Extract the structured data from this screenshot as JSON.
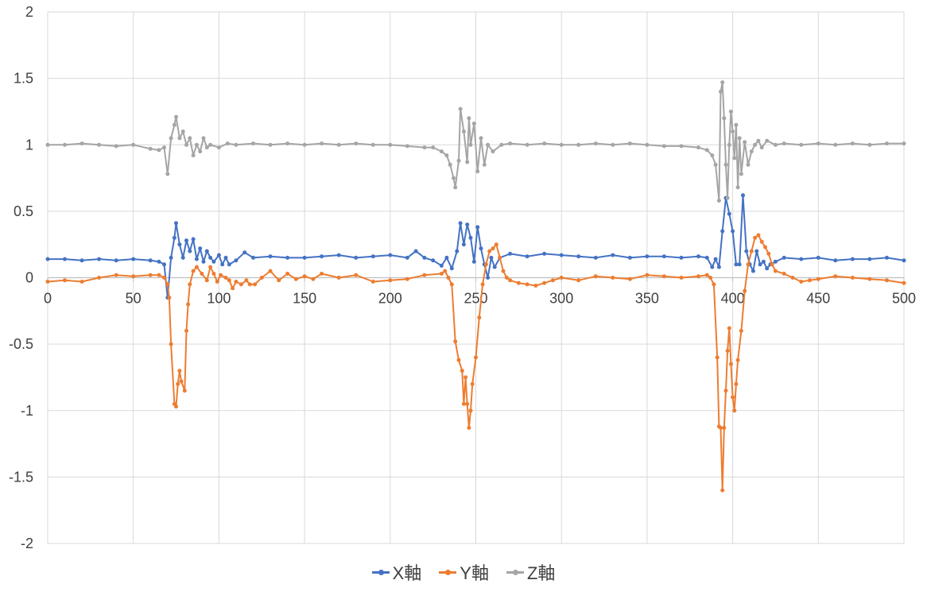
{
  "chart_data": {
    "type": "line",
    "title": "",
    "xlabel": "",
    "ylabel": "",
    "xlim": [
      0,
      500
    ],
    "ylim": [
      -2,
      2
    ],
    "x_ticks": [
      "0",
      "50",
      "100",
      "150",
      "200",
      "250",
      "300",
      "350",
      "400",
      "450",
      "500"
    ],
    "y_ticks": [
      "2",
      "1.5",
      "1",
      "0.5",
      "0",
      "-0.5",
      "-1",
      "-1.5",
      "-2"
    ],
    "grid": true,
    "legend_position": "bottom",
    "series": [
      {
        "name": "X軸",
        "color": "#4472C4",
        "points": [
          [
            0,
            0.14
          ],
          [
            10,
            0.14
          ],
          [
            20,
            0.13
          ],
          [
            30,
            0.14
          ],
          [
            40,
            0.13
          ],
          [
            50,
            0.14
          ],
          [
            60,
            0.13
          ],
          [
            65,
            0.12
          ],
          [
            68,
            0.1
          ],
          [
            70,
            -0.15
          ],
          [
            72,
            0.15
          ],
          [
            74,
            0.3
          ],
          [
            75,
            0.41
          ],
          [
            77,
            0.25
          ],
          [
            79,
            0.15
          ],
          [
            81,
            0.28
          ],
          [
            83,
            0.2
          ],
          [
            85,
            0.29
          ],
          [
            87,
            0.14
          ],
          [
            89,
            0.22
          ],
          [
            91,
            0.12
          ],
          [
            93,
            0.2
          ],
          [
            95,
            0.15
          ],
          [
            97,
            0.12
          ],
          [
            100,
            0.17
          ],
          [
            102,
            0.1
          ],
          [
            104,
            0.15
          ],
          [
            106,
            0.1
          ],
          [
            110,
            0.13
          ],
          [
            115,
            0.19
          ],
          [
            120,
            0.15
          ],
          [
            130,
            0.16
          ],
          [
            140,
            0.15
          ],
          [
            150,
            0.15
          ],
          [
            160,
            0.16
          ],
          [
            170,
            0.17
          ],
          [
            180,
            0.15
          ],
          [
            190,
            0.16
          ],
          [
            200,
            0.17
          ],
          [
            210,
            0.15
          ],
          [
            215,
            0.2
          ],
          [
            220,
            0.15
          ],
          [
            225,
            0.13
          ],
          [
            230,
            0.09
          ],
          [
            233,
            0.15
          ],
          [
            236,
            0.07
          ],
          [
            239,
            0.2
          ],
          [
            241,
            0.41
          ],
          [
            243,
            0.25
          ],
          [
            245,
            0.4
          ],
          [
            247,
            0.3
          ],
          [
            249,
            0.12
          ],
          [
            251,
            0.38
          ],
          [
            253,
            0.22
          ],
          [
            255,
            0.1
          ],
          [
            257,
            0.0
          ],
          [
            259,
            0.15
          ],
          [
            261,
            0.08
          ],
          [
            264,
            0.15
          ],
          [
            270,
            0.18
          ],
          [
            280,
            0.16
          ],
          [
            290,
            0.18
          ],
          [
            300,
            0.17
          ],
          [
            310,
            0.16
          ],
          [
            320,
            0.15
          ],
          [
            330,
            0.17
          ],
          [
            340,
            0.15
          ],
          [
            350,
            0.16
          ],
          [
            360,
            0.16
          ],
          [
            370,
            0.15
          ],
          [
            380,
            0.16
          ],
          [
            385,
            0.15
          ],
          [
            388,
            0.08
          ],
          [
            390,
            0.14
          ],
          [
            392,
            0.08
          ],
          [
            394,
            0.35
          ],
          [
            396,
            0.6
          ],
          [
            398,
            0.48
          ],
          [
            400,
            0.35
          ],
          [
            402,
            0.1
          ],
          [
            404,
            0.1
          ],
          [
            406,
            0.62
          ],
          [
            408,
            0.2
          ],
          [
            410,
            0.1
          ],
          [
            412,
            0.05
          ],
          [
            414,
            0.2
          ],
          [
            416,
            0.1
          ],
          [
            418,
            0.12
          ],
          [
            420,
            0.07
          ],
          [
            422,
            0.1
          ],
          [
            425,
            0.12
          ],
          [
            430,
            0.15
          ],
          [
            440,
            0.14
          ],
          [
            450,
            0.15
          ],
          [
            460,
            0.13
          ],
          [
            470,
            0.14
          ],
          [
            480,
            0.14
          ],
          [
            490,
            0.15
          ],
          [
            500,
            0.13
          ]
        ]
      },
      {
        "name": "Y軸",
        "color": "#ED7D31",
        "points": [
          [
            0,
            -0.03
          ],
          [
            10,
            -0.02
          ],
          [
            20,
            -0.03
          ],
          [
            30,
            0.0
          ],
          [
            40,
            0.02
          ],
          [
            50,
            0.01
          ],
          [
            60,
            0.02
          ],
          [
            65,
            0.02
          ],
          [
            68,
            0.0
          ],
          [
            70,
            -0.05
          ],
          [
            71,
            -0.15
          ],
          [
            72,
            -0.5
          ],
          [
            74,
            -0.95
          ],
          [
            75,
            -0.97
          ],
          [
            76,
            -0.8
          ],
          [
            77,
            -0.7
          ],
          [
            78,
            -0.78
          ],
          [
            80,
            -0.85
          ],
          [
            81,
            -0.4
          ],
          [
            82,
            -0.2
          ],
          [
            83,
            -0.05
          ],
          [
            85,
            0.05
          ],
          [
            87,
            0.08
          ],
          [
            90,
            0.03
          ],
          [
            93,
            -0.02
          ],
          [
            95,
            0.08
          ],
          [
            97,
            0.03
          ],
          [
            99,
            -0.03
          ],
          [
            101,
            0.02
          ],
          [
            104,
            0.0
          ],
          [
            106,
            -0.02
          ],
          [
            108,
            -0.08
          ],
          [
            110,
            -0.03
          ],
          [
            113,
            -0.05
          ],
          [
            116,
            -0.02
          ],
          [
            118,
            -0.05
          ],
          [
            121,
            -0.05
          ],
          [
            125,
            0.0
          ],
          [
            130,
            0.05
          ],
          [
            135,
            -0.02
          ],
          [
            140,
            0.03
          ],
          [
            145,
            -0.01
          ],
          [
            150,
            0.01
          ],
          [
            155,
            -0.01
          ],
          [
            160,
            0.03
          ],
          [
            170,
            0.0
          ],
          [
            180,
            0.02
          ],
          [
            190,
            -0.03
          ],
          [
            200,
            -0.02
          ],
          [
            210,
            -0.01
          ],
          [
            220,
            0.02
          ],
          [
            230,
            0.03
          ],
          [
            232,
            0.05
          ],
          [
            234,
            0.0
          ],
          [
            236,
            -0.05
          ],
          [
            238,
            -0.48
          ],
          [
            240,
            -0.62
          ],
          [
            242,
            -0.7
          ],
          [
            243,
            -0.95
          ],
          [
            244,
            -0.75
          ],
          [
            245,
            -0.95
          ],
          [
            246,
            -1.13
          ],
          [
            247,
            -1.0
          ],
          [
            248,
            -0.8
          ],
          [
            250,
            -0.6
          ],
          [
            252,
            -0.3
          ],
          [
            254,
            -0.05
          ],
          [
            256,
            0.1
          ],
          [
            258,
            0.2
          ],
          [
            260,
            0.22
          ],
          [
            262,
            0.25
          ],
          [
            264,
            0.15
          ],
          [
            266,
            0.05
          ],
          [
            268,
            0.0
          ],
          [
            270,
            -0.02
          ],
          [
            275,
            -0.04
          ],
          [
            280,
            -0.05
          ],
          [
            285,
            -0.06
          ],
          [
            290,
            -0.04
          ],
          [
            295,
            -0.02
          ],
          [
            300,
            0.0
          ],
          [
            310,
            -0.02
          ],
          [
            320,
            0.01
          ],
          [
            330,
            0.0
          ],
          [
            340,
            -0.01
          ],
          [
            350,
            0.02
          ],
          [
            360,
            0.01
          ],
          [
            370,
            0.0
          ],
          [
            380,
            0.01
          ],
          [
            385,
            0.02
          ],
          [
            387,
            0.0
          ],
          [
            389,
            -0.05
          ],
          [
            391,
            -0.6
          ],
          [
            392,
            -1.12
          ],
          [
            393,
            -1.13
          ],
          [
            394,
            -1.6
          ],
          [
            395,
            -1.13
          ],
          [
            396,
            -0.85
          ],
          [
            397,
            -0.55
          ],
          [
            398,
            -0.38
          ],
          [
            399,
            -0.65
          ],
          [
            400,
            -0.9
          ],
          [
            401,
            -1.0
          ],
          [
            402,
            -0.8
          ],
          [
            403,
            -0.62
          ],
          [
            405,
            -0.4
          ],
          [
            407,
            -0.1
          ],
          [
            409,
            0.1
          ],
          [
            411,
            0.2
          ],
          [
            413,
            0.3
          ],
          [
            415,
            0.32
          ],
          [
            417,
            0.27
          ],
          [
            419,
            0.23
          ],
          [
            421,
            0.18
          ],
          [
            423,
            0.1
          ],
          [
            425,
            0.05
          ],
          [
            430,
            0.03
          ],
          [
            435,
            0.0
          ],
          [
            440,
            -0.03
          ],
          [
            445,
            -0.02
          ],
          [
            450,
            -0.01
          ],
          [
            460,
            0.01
          ],
          [
            470,
            0.0
          ],
          [
            480,
            -0.01
          ],
          [
            490,
            -0.02
          ],
          [
            500,
            -0.04
          ]
        ]
      },
      {
        "name": "Z軸",
        "color": "#A5A5A5",
        "points": [
          [
            0,
            1.0
          ],
          [
            10,
            1.0
          ],
          [
            20,
            1.01
          ],
          [
            30,
            1.0
          ],
          [
            40,
            0.99
          ],
          [
            50,
            1.0
          ],
          [
            60,
            0.97
          ],
          [
            65,
            0.96
          ],
          [
            68,
            0.98
          ],
          [
            70,
            0.78
          ],
          [
            72,
            1.05
          ],
          [
            74,
            1.15
          ],
          [
            75,
            1.21
          ],
          [
            77,
            1.05
          ],
          [
            79,
            1.1
          ],
          [
            81,
            1.0
          ],
          [
            83,
            1.05
          ],
          [
            85,
            0.92
          ],
          [
            87,
            1.0
          ],
          [
            89,
            0.95
          ],
          [
            91,
            1.05
          ],
          [
            93,
            0.98
          ],
          [
            95,
            1.0
          ],
          [
            100,
            0.98
          ],
          [
            105,
            1.01
          ],
          [
            110,
            1.0
          ],
          [
            120,
            1.01
          ],
          [
            130,
            1.0
          ],
          [
            140,
            1.01
          ],
          [
            150,
            1.0
          ],
          [
            160,
            1.01
          ],
          [
            170,
            1.0
          ],
          [
            180,
            1.01
          ],
          [
            190,
            1.0
          ],
          [
            200,
            1.0
          ],
          [
            210,
            0.99
          ],
          [
            220,
            0.98
          ],
          [
            225,
            0.98
          ],
          [
            230,
            0.95
          ],
          [
            233,
            0.92
          ],
          [
            235,
            0.85
          ],
          [
            237,
            0.75
          ],
          [
            238,
            0.68
          ],
          [
            240,
            0.88
          ],
          [
            241,
            1.27
          ],
          [
            243,
            1.1
          ],
          [
            245,
            0.87
          ],
          [
            246,
            1.2
          ],
          [
            247,
            1.0
          ],
          [
            249,
            1.16
          ],
          [
            251,
            0.8
          ],
          [
            253,
            1.05
          ],
          [
            255,
            0.85
          ],
          [
            257,
            1.0
          ],
          [
            260,
            0.95
          ],
          [
            265,
            1.0
          ],
          [
            270,
            1.01
          ],
          [
            280,
            1.0
          ],
          [
            290,
            1.01
          ],
          [
            300,
            1.0
          ],
          [
            310,
            1.0
          ],
          [
            320,
            1.01
          ],
          [
            330,
            1.0
          ],
          [
            340,
            1.01
          ],
          [
            350,
            1.0
          ],
          [
            360,
            0.99
          ],
          [
            370,
            0.99
          ],
          [
            380,
            0.98
          ],
          [
            385,
            0.96
          ],
          [
            388,
            0.92
          ],
          [
            390,
            0.85
          ],
          [
            392,
            0.58
          ],
          [
            393,
            1.4
          ],
          [
            394,
            1.47
          ],
          [
            395,
            1.2
          ],
          [
            396,
            0.85
          ],
          [
            397,
            0.6
          ],
          [
            398,
            1.0
          ],
          [
            399,
            1.25
          ],
          [
            400,
            1.1
          ],
          [
            401,
            0.9
          ],
          [
            402,
            1.15
          ],
          [
            403,
            0.68
          ],
          [
            404,
            1.05
          ],
          [
            405,
            0.78
          ],
          [
            407,
            1.02
          ],
          [
            409,
            0.85
          ],
          [
            411,
            0.95
          ],
          [
            413,
            1.0
          ],
          [
            415,
            1.03
          ],
          [
            417,
            0.98
          ],
          [
            420,
            1.03
          ],
          [
            425,
            1.0
          ],
          [
            430,
            1.01
          ],
          [
            440,
            1.0
          ],
          [
            450,
            1.01
          ],
          [
            460,
            1.0
          ],
          [
            470,
            1.01
          ],
          [
            480,
            1.0
          ],
          [
            490,
            1.01
          ],
          [
            500,
            1.01
          ]
        ]
      }
    ]
  }
}
